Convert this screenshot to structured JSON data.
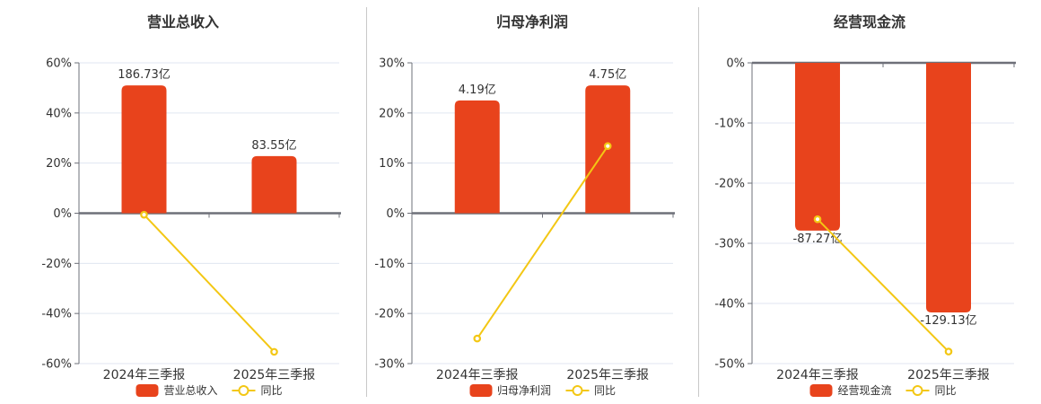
{
  "colors": {
    "bar": "#E8431C",
    "line": "#F3C714",
    "marker_fill": "#FFFFFF",
    "grid_line": "#E0E6F1",
    "axis_line": "#6E7079",
    "zero_line": "#6E7079",
    "text": "#333333",
    "title_text": "#333333",
    "divider": "#C8C8C8",
    "background": "#FFFFFF"
  },
  "chart_data": [
    {
      "type": "bar+line",
      "title": "营业总收入",
      "categories": [
        "2024年三季报",
        "2025年三季报"
      ],
      "bar_series": {
        "name": "营业总收入",
        "values_yi": [
          186.73,
          83.55
        ],
        "labels": [
          "186.73亿",
          "83.55亿"
        ],
        "plotted_pct": [
          51,
          22.8
        ],
        "label_position": "above"
      },
      "line_series": {
        "name": "同比",
        "values_pct": [
          -0.6,
          -55.3
        ]
      },
      "y_axis": {
        "min": -60,
        "max": 60,
        "step": 20,
        "tick_labels": [
          "60%",
          "40%",
          "20%",
          "0%",
          "-20%",
          "-40%",
          "-60%"
        ]
      },
      "legend": [
        "营业总收入",
        "同比"
      ],
      "grid": true,
      "legend_position": "bottom"
    },
    {
      "type": "bar+line",
      "title": "归母净利润",
      "categories": [
        "2024年三季报",
        "2025年三季报"
      ],
      "bar_series": {
        "name": "归母净利润",
        "values_yi": [
          4.19,
          4.75
        ],
        "labels": [
          "4.19亿",
          "4.75亿"
        ],
        "plotted_pct": [
          22.5,
          25.5
        ],
        "label_position": "above"
      },
      "line_series": {
        "name": "同比",
        "values_pct": [
          -25,
          13.4
        ]
      },
      "y_axis": {
        "min": -30,
        "max": 30,
        "step": 10,
        "tick_labels": [
          "30%",
          "20%",
          "10%",
          "0%",
          "-10%",
          "-20%",
          "-30%"
        ]
      },
      "legend": [
        "归母净利润",
        "同比"
      ],
      "grid": true,
      "legend_position": "bottom"
    },
    {
      "type": "bar+line",
      "title": "经营现金流",
      "categories": [
        "2024年三季报",
        "2025年三季报"
      ],
      "bar_series": {
        "name": "经营现金流",
        "values_yi": [
          -87.27,
          -129.13
        ],
        "labels": [
          "-87.27亿",
          "-129.13亿"
        ],
        "plotted_pct": [
          -27.9,
          -41.5
        ],
        "label_position": "below"
      },
      "line_series": {
        "name": "同比",
        "values_pct": [
          -26,
          -48
        ]
      },
      "y_axis": {
        "min": -50,
        "max": 0,
        "step": 10,
        "tick_labels": [
          "0%",
          "-10%",
          "-20%",
          "-30%",
          "-40%",
          "-50%"
        ]
      },
      "legend": [
        "经营现金流",
        "同比"
      ],
      "grid": true,
      "legend_position": "bottom"
    }
  ]
}
